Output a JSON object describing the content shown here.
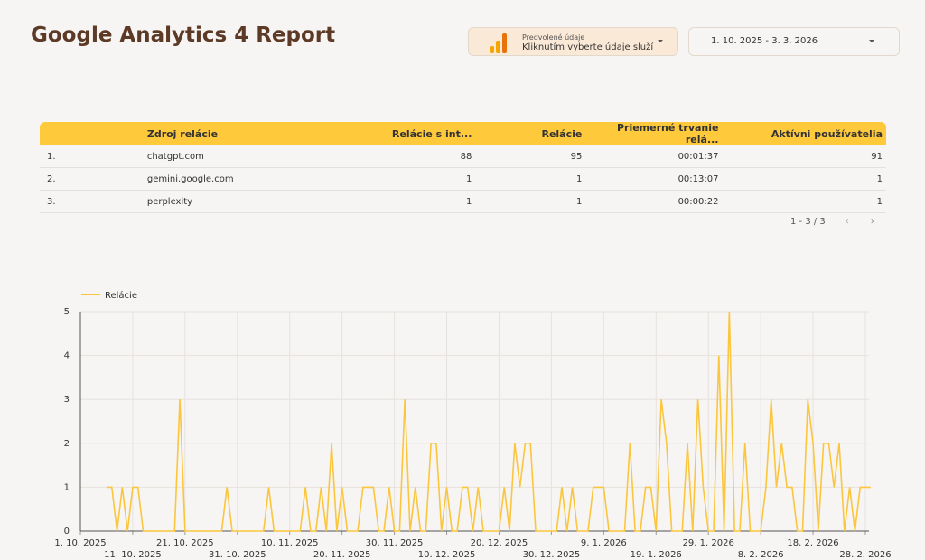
{
  "header": {
    "title": "Google Analytics 4 Report",
    "source_label": "Predvolené údaje",
    "source_value": "Kliknutím vyberte údaje služí",
    "date_range": "1. 10. 2025 - 3. 3. 2026"
  },
  "table": {
    "columns": [
      "Zdroj relácie",
      "Relácie s int...",
      "Relácie",
      "Priemerné trvanie relá...",
      "Aktívni používatelia"
    ],
    "rows": [
      [
        "1.",
        "chatgpt.com",
        "88",
        "95",
        "00:01:37",
        "91"
      ],
      [
        "2.",
        "gemini.google.com",
        "1",
        "1",
        "00:13:07",
        "1"
      ],
      [
        "3.",
        "perplexity",
        "1",
        "1",
        "00:00:22",
        "1"
      ]
    ],
    "pagination": "1 - 3 / 3"
  },
  "chart_data": {
    "type": "line",
    "series": [
      {
        "name": "Relácie",
        "color": "#fbc63d",
        "values": [
          null,
          null,
          null,
          null,
          null,
          1,
          1,
          0,
          1,
          0,
          1,
          1,
          0,
          0,
          0,
          0,
          0,
          0,
          0,
          3,
          0,
          0,
          0,
          0,
          0,
          0,
          0,
          0,
          1,
          0,
          0,
          0,
          0,
          0,
          0,
          0,
          1,
          0,
          0,
          0,
          0,
          0,
          0,
          1,
          0,
          0,
          1,
          0,
          2,
          0,
          1,
          0,
          0,
          0,
          1,
          1,
          1,
          0,
          0,
          1,
          0,
          0,
          3,
          0,
          1,
          0,
          0,
          2,
          2,
          0,
          1,
          0,
          0,
          1,
          1,
          0,
          1,
          0,
          0,
          0,
          0,
          1,
          0,
          2,
          1,
          2,
          2,
          0,
          0,
          0,
          0,
          0,
          1,
          0,
          1,
          0,
          0,
          0,
          1,
          1,
          1,
          0,
          0,
          0,
          0,
          2,
          0,
          0,
          1,
          1,
          0,
          3,
          2,
          0,
          0,
          0,
          2,
          0,
          3,
          1,
          0,
          0,
          4,
          0,
          5,
          0,
          0,
          2,
          0,
          0,
          0,
          1,
          3,
          1,
          2,
          1,
          1,
          0,
          0,
          3,
          2,
          0,
          2,
          2,
          1,
          2,
          0,
          1,
          0,
          1,
          1,
          1
        ]
      }
    ],
    "categories": [
      "1. 10. 2025",
      null,
      null,
      null,
      null,
      null,
      null,
      null,
      null,
      null,
      "11. 10. 2025",
      null,
      null,
      null,
      null,
      null,
      null,
      null,
      null,
      null,
      "21. 10. 2025",
      null,
      null,
      null,
      null,
      null,
      null,
      null,
      null,
      null,
      "31. 10. 2025",
      null,
      null,
      null,
      null,
      null,
      null,
      null,
      null,
      null,
      "10. 11. 2025",
      null,
      null,
      null,
      null,
      null,
      null,
      null,
      null,
      null,
      "20. 11. 2025",
      null,
      null,
      null,
      null,
      null,
      null,
      null,
      null,
      null,
      "30. 11. 2025",
      null,
      null,
      null,
      null,
      null,
      null,
      null,
      null,
      null,
      "10. 12. 2025",
      null,
      null,
      null,
      null,
      null,
      null,
      null,
      null,
      null,
      "20. 12. 2025",
      null,
      null,
      null,
      null,
      null,
      null,
      null,
      null,
      null,
      "30. 12. 2025",
      null,
      null,
      null,
      null,
      null,
      null,
      null,
      null,
      null,
      "9. 1. 2026",
      null,
      null,
      null,
      null,
      null,
      null,
      null,
      null,
      null,
      "19. 1. 2026",
      null,
      null,
      null,
      null,
      null,
      null,
      null,
      null,
      null,
      "29. 1. 2026",
      null,
      null,
      null,
      null,
      null,
      null,
      null,
      null,
      null,
      "8. 2. 2026",
      null,
      null,
      null,
      null,
      null,
      null,
      null,
      null,
      null,
      "18. 2. 2026",
      null,
      null,
      null,
      null,
      null,
      null,
      null,
      null,
      null,
      "28. 2. 2026",
      null
    ],
    "ylim": [
      0,
      5
    ],
    "yticks": [
      0,
      1,
      2,
      3,
      4,
      5
    ],
    "grid": true
  }
}
